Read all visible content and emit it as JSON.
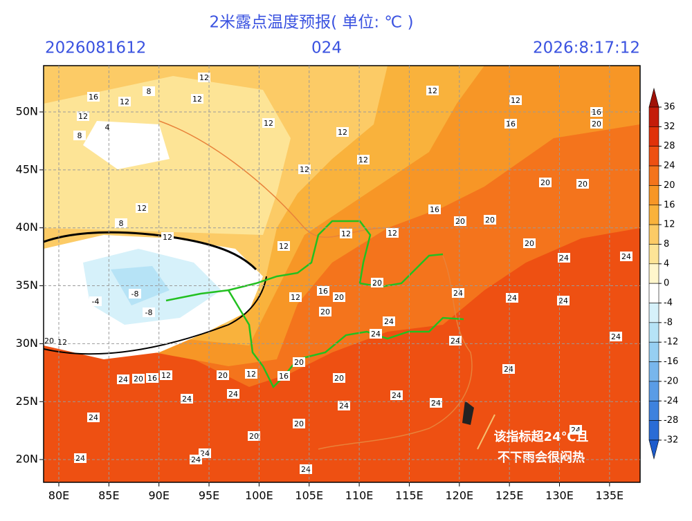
{
  "header": {
    "title": "2米露点温度预报( 单位: ℃ )",
    "init_time": "2026081612",
    "lead": "024",
    "valid_time": "2026:8:17:12"
  },
  "map": {
    "lat_ticks": [
      {
        "value": 50,
        "label": "50N"
      },
      {
        "value": 45,
        "label": "45N"
      },
      {
        "value": 40,
        "label": "40N"
      },
      {
        "value": 35,
        "label": "35N"
      },
      {
        "value": 30,
        "label": "30N"
      },
      {
        "value": 25,
        "label": "25N"
      },
      {
        "value": 20,
        "label": "20N"
      }
    ],
    "lon_ticks": [
      {
        "value": 80,
        "label": "80E"
      },
      {
        "value": 85,
        "label": "85E"
      },
      {
        "value": 90,
        "label": "90E"
      },
      {
        "value": 95,
        "label": "95E"
      },
      {
        "value": 100,
        "label": "100E"
      },
      {
        "value": 105,
        "label": "105E"
      },
      {
        "value": 110,
        "label": "110E"
      },
      {
        "value": 115,
        "label": "115E"
      },
      {
        "value": 120,
        "label": "120E"
      },
      {
        "value": 125,
        "label": "125E"
      },
      {
        "value": 130,
        "label": "130E"
      },
      {
        "value": 135,
        "label": "135E"
      }
    ],
    "contour_labels": [
      12,
      16,
      12,
      8,
      12,
      12,
      8,
      4,
      12,
      12,
      12,
      12,
      16,
      16,
      20,
      12,
      12,
      12,
      8,
      12,
      12,
      12,
      12,
      16,
      20,
      20,
      20,
      20,
      20,
      24,
      24,
      -8,
      -8,
      -4,
      16,
      20,
      20,
      20,
      12,
      24,
      24,
      24,
      24,
      24,
      24,
      24,
      24,
      20,
      20,
      16,
      12,
      12,
      16,
      20,
      24,
      20,
      12,
      20,
      24,
      24,
      24,
      24,
      24,
      24,
      20,
      20,
      24,
      24,
      24,
      24,
      24
    ],
    "annotation": [
      "该指标超24℃且",
      "不下雨会很闷热"
    ]
  },
  "colorbar": {
    "ticks": [
      36,
      32,
      28,
      24,
      20,
      16,
      12,
      8,
      4,
      0,
      -4,
      -8,
      -12,
      -16,
      -20,
      -24,
      -28,
      -32
    ],
    "colors": [
      "#a01208",
      "#c41c0a",
      "#e0320a",
      "#ee5012",
      "#f4741c",
      "#f79626",
      "#f9b23c",
      "#fccb66",
      "#fde496",
      "#fff6cc",
      "#ffffff",
      "#d6f1fa",
      "#b6e3f6",
      "#96cff2",
      "#78b6ec",
      "#5a9ce6",
      "#3e82de",
      "#2a6cd6",
      "#1e5ccc"
    ]
  }
}
